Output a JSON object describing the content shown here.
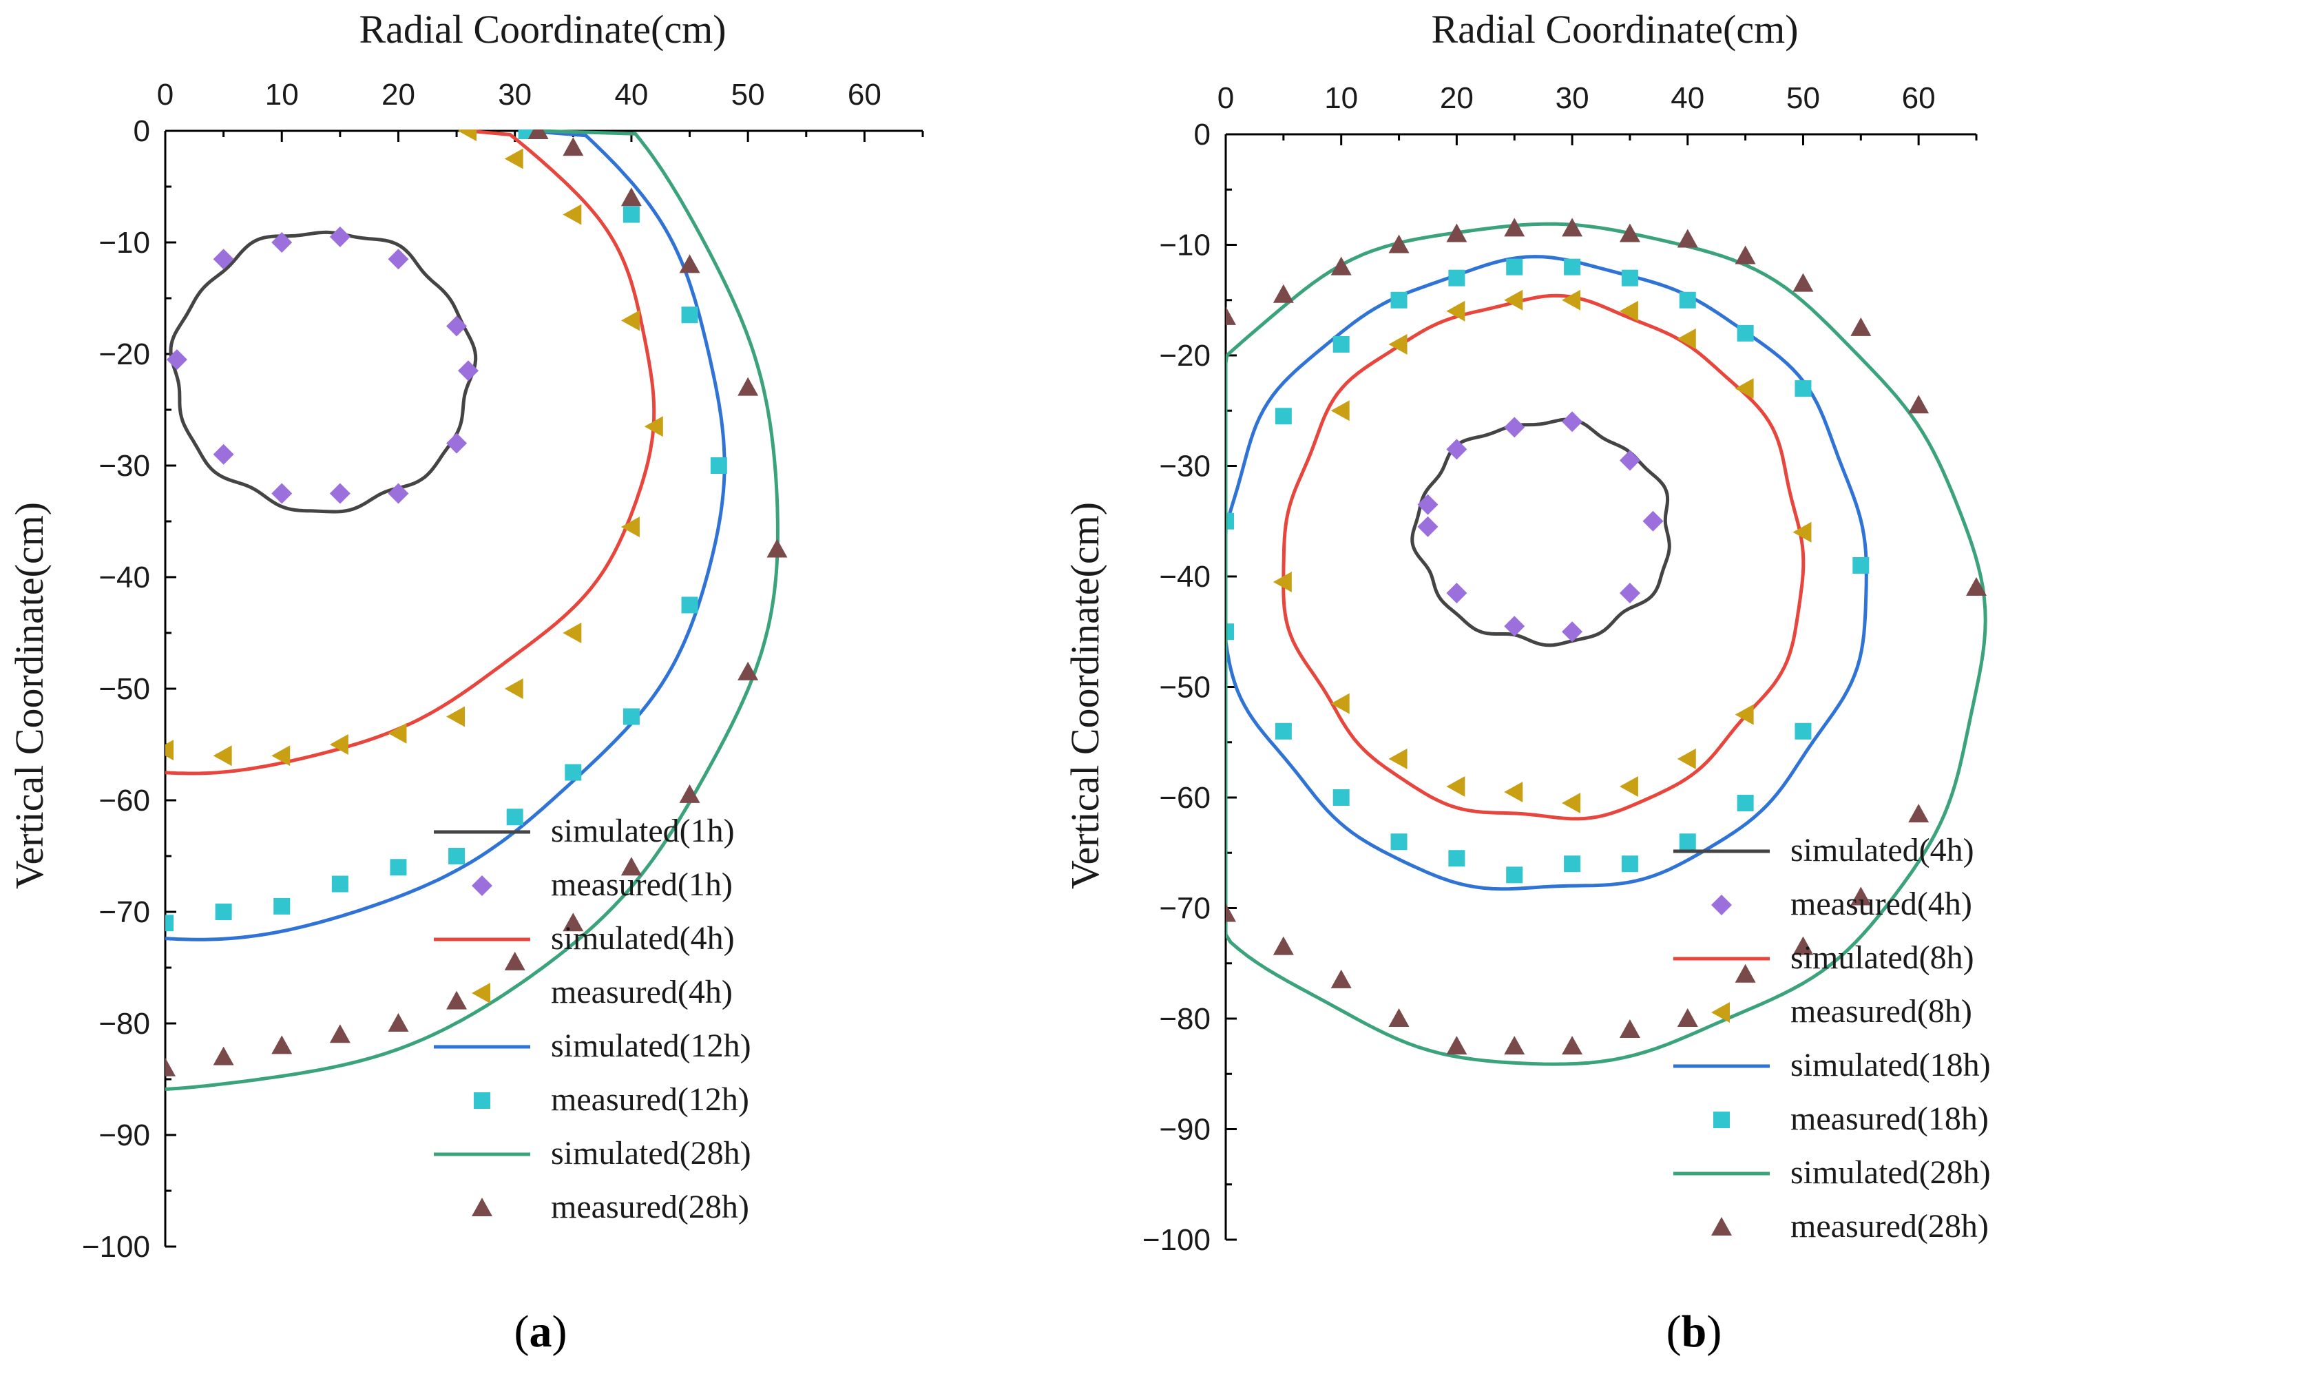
{
  "chart_data": [
    {
      "panel": "a",
      "panel_label": "a",
      "type": "line",
      "xlabel": "Radial Coordinate(cm)",
      "ylabel": "Vertical Coordinate(cm)",
      "xlim": [
        0,
        65
      ],
      "ylim": [
        -100,
        0
      ],
      "xticks": [
        0,
        10,
        20,
        30,
        40,
        50,
        60
      ],
      "yticks": [
        0,
        -10,
        -20,
        -30,
        -40,
        -50,
        -60,
        -70,
        -80,
        -90,
        -100
      ],
      "legend_position": "bottom-right",
      "series": [
        {
          "name": "simulated(1h)",
          "kind": "line",
          "color": "#444444",
          "shape": "ring",
          "cx": 13.5,
          "cy": -21.5,
          "rx": 12.8,
          "ry": 12.5
        },
        {
          "name": "measured(1h)",
          "kind": "marker",
          "marker": "diamond",
          "color": "#9b6fdc",
          "x": [
            5,
            10,
            15,
            20,
            25,
            26,
            25,
            20,
            15,
            10,
            5,
            1
          ],
          "y": [
            -11.5,
            -10,
            -9.5,
            -11.5,
            -17.5,
            -21.5,
            -28,
            -32.5,
            -32.5,
            -32.5,
            -29,
            -20.5
          ]
        },
        {
          "name": "simulated(4h)",
          "kind": "line",
          "color": "#e8453c",
          "shape": "half-ellipse",
          "cx": 0,
          "cy": -24,
          "rx": 42,
          "ry": 33.5,
          "top_x": 26
        },
        {
          "name": "measured(4h)",
          "kind": "marker",
          "marker": "triangle-left",
          "color": "#c9a013",
          "x": [
            26,
            30,
            35,
            40,
            42,
            40,
            35,
            30,
            25,
            20,
            15,
            10,
            5,
            0
          ],
          "y": [
            0,
            -2.5,
            -7.5,
            -17,
            -26.5,
            -35.5,
            -45,
            -50,
            -52.5,
            -54,
            -55,
            -56,
            -56,
            -55.5
          ]
        },
        {
          "name": "simulated(12h)",
          "kind": "line",
          "color": "#2f73d6",
          "shape": "half-ellipse",
          "cx": 0,
          "cy": -29,
          "rx": 48,
          "ry": 43.5,
          "top_x": 31
        },
        {
          "name": "measured(12h)",
          "kind": "marker",
          "marker": "square",
          "color": "#31c6cf",
          "x": [
            31,
            40,
            45,
            47.5,
            45,
            40,
            35,
            30,
            25,
            20,
            15,
            10,
            5,
            0
          ],
          "y": [
            0,
            -7.5,
            -16.5,
            -30,
            -42.5,
            -52.5,
            -57.5,
            -61.5,
            -65,
            -66,
            -67.5,
            -69.5,
            -70,
            -71
          ]
        },
        {
          "name": "simulated(28h)",
          "kind": "line",
          "color": "#3aa37c",
          "shape": "half-ellipse",
          "cx": 0,
          "cy": -34,
          "rx": 52.5,
          "ry": 52,
          "top_x": 32
        },
        {
          "name": "measured(28h)",
          "kind": "marker",
          "marker": "triangle-up",
          "color": "#7a4a4a",
          "x": [
            32,
            35,
            40,
            45,
            50,
            52.5,
            50,
            45,
            40,
            35,
            30,
            25,
            20,
            15,
            10,
            5,
            0
          ],
          "y": [
            0,
            -1.5,
            -6,
            -12,
            -23,
            -37.5,
            -48.5,
            -59.5,
            -66,
            -71,
            -74.5,
            -78,
            -80,
            -81,
            -82,
            -83,
            -84
          ]
        }
      ]
    },
    {
      "panel": "b",
      "panel_label": "b",
      "type": "line",
      "xlabel": "Radial Coordinate(cm)",
      "ylabel": "Vertical Coordinate(cm)",
      "xlim": [
        0,
        65
      ],
      "ylim": [
        -100,
        0
      ],
      "xticks": [
        0,
        10,
        20,
        30,
        40,
        50,
        60
      ],
      "yticks": [
        0,
        -10,
        -20,
        -30,
        -40,
        -50,
        -60,
        -70,
        -80,
        -90,
        -100
      ],
      "legend_position": "bottom-right",
      "series": [
        {
          "name": "simulated(4h)",
          "kind": "line",
          "color": "#444444",
          "shape": "ring",
          "cx": 27.5,
          "cy": -36,
          "rx": 11,
          "ry": 10
        },
        {
          "name": "measured(4h)",
          "kind": "marker",
          "marker": "diamond",
          "color": "#9b6fdc",
          "x": [
            20,
            25,
            30,
            35,
            37,
            35,
            30,
            25,
            20,
            17.5,
            17.5
          ],
          "y": [
            -28.5,
            -26.5,
            -26,
            -29.5,
            -35,
            -41.5,
            -45,
            -44.5,
            -41.5,
            -35.5,
            -33.5
          ]
        },
        {
          "name": "simulated(8h)",
          "kind": "line",
          "color": "#e8453c",
          "shape": "ring",
          "cx": 27.5,
          "cy": -38.5,
          "rx": 22.5,
          "ry": 23.5
        },
        {
          "name": "measured(8h)",
          "kind": "marker",
          "marker": "triangle-left",
          "color": "#c9a013",
          "x": [
            15,
            20,
            25,
            30,
            35,
            40,
            45,
            50,
            45,
            40,
            35,
            30,
            25,
            20,
            15,
            10,
            5,
            10
          ],
          "y": [
            -19,
            -16,
            -15,
            -15,
            -16,
            -18.5,
            -23,
            -36,
            -52.5,
            -56.5,
            -59,
            -60.5,
            -59.5,
            -59,
            -56.5,
            -51.5,
            -40.5,
            -25
          ]
        },
        {
          "name": "simulated(18h)",
          "kind": "line",
          "color": "#2f73d6",
          "shape": "ring",
          "cx": 27.5,
          "cy": -40,
          "rx": 28,
          "ry": 28.5
        },
        {
          "name": "measured(18h)",
          "kind": "marker",
          "marker": "square",
          "color": "#31c6cf",
          "x": [
            0,
            5,
            10,
            15,
            20,
            25,
            30,
            35,
            40,
            45,
            50,
            55,
            50,
            45,
            40,
            35,
            30,
            25,
            20,
            15,
            10,
            5,
            0
          ],
          "y": [
            -35,
            -25.5,
            -19,
            -15,
            -13,
            -12,
            -12,
            -13,
            -15,
            -18,
            -23,
            -39,
            -54,
            -60.5,
            -64,
            -66,
            -66,
            -67,
            -65.5,
            -64,
            -60,
            -54,
            -45
          ]
        },
        {
          "name": "simulated(28h)",
          "kind": "line",
          "color": "#3aa37c",
          "shape": "ring",
          "cx": 27.5,
          "cy": -46,
          "rx": 38,
          "ry": 38
        },
        {
          "name": "measured(28h)",
          "kind": "marker",
          "marker": "triangle-up",
          "color": "#7a4a4a",
          "x": [
            0,
            5,
            10,
            15,
            20,
            25,
            30,
            35,
            40,
            45,
            50,
            55,
            60,
            65,
            60,
            55,
            50,
            45,
            40,
            35,
            30,
            25,
            20,
            15,
            10,
            5,
            0
          ],
          "y": [
            -16.5,
            -14.5,
            -12,
            -10,
            -9,
            -8.5,
            -8.5,
            -9,
            -9.5,
            -11,
            -13.5,
            -17.5,
            -24.5,
            -41,
            -61.5,
            -69,
            -73.5,
            -76,
            -80,
            -81,
            -82.5,
            -82.5,
            -82.5,
            -80,
            -76.5,
            -73.5,
            -70.5
          ]
        }
      ]
    }
  ]
}
